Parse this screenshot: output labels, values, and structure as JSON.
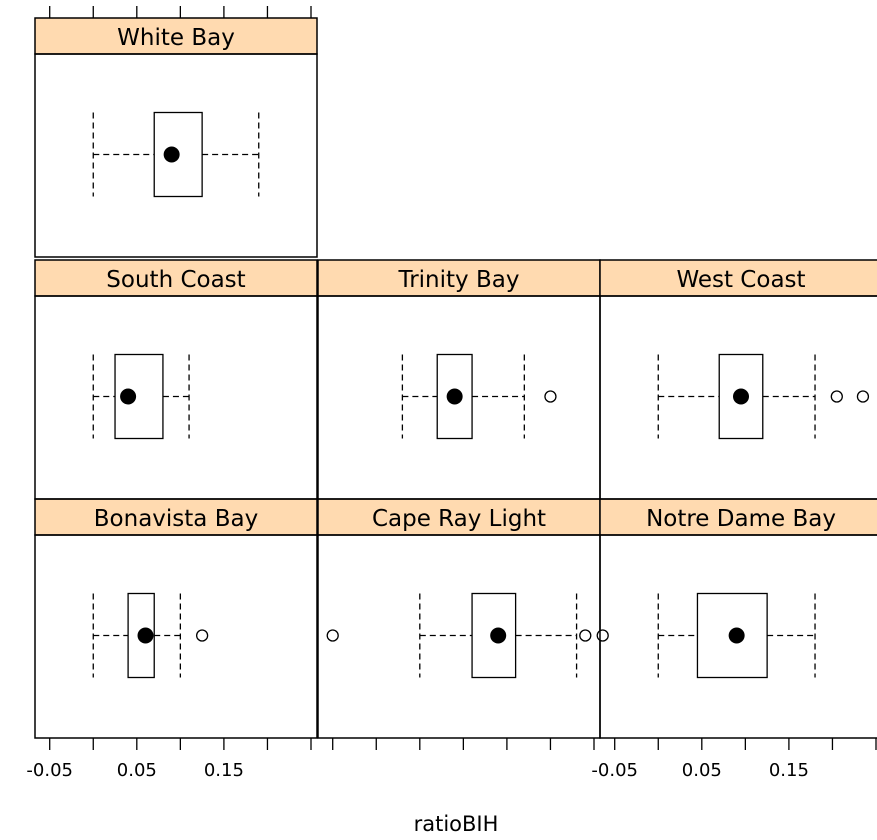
{
  "chart_data": {
    "type": "boxplot",
    "xlabel": "ratioBIH",
    "xlim": [
      -0.06,
      0.25
    ],
    "tick_values": [
      -0.05,
      0.0,
      0.05,
      0.1,
      0.15,
      0.2,
      0.25
    ],
    "tick_labels": [
      "-0.05",
      "",
      "0.05",
      "",
      "0.15",
      "",
      ""
    ],
    "strip_color": "#ffdab0",
    "panels": [
      {
        "name": "Bonavista Bay",
        "row": 0,
        "col": 0,
        "whisker_low": 0.0,
        "q1": 0.04,
        "median": 0.06,
        "q3": 0.07,
        "whisker_high": 0.1,
        "outliers": [
          0.125
        ]
      },
      {
        "name": "Cape Ray Light",
        "row": 0,
        "col": 1,
        "whisker_low": 0.05,
        "q1": 0.11,
        "median": 0.14,
        "q3": 0.16,
        "whisker_high": 0.23,
        "outliers": [
          -0.05,
          0.24,
          0.26
        ]
      },
      {
        "name": "Notre Dame Bay",
        "row": 0,
        "col": 2,
        "whisker_low": 0.0,
        "q1": 0.045,
        "median": 0.09,
        "q3": 0.125,
        "whisker_high": 0.18,
        "outliers": []
      },
      {
        "name": "South Coast",
        "row": 1,
        "col": 0,
        "whisker_low": 0.0,
        "q1": 0.025,
        "median": 0.04,
        "q3": 0.08,
        "whisker_high": 0.11,
        "outliers": []
      },
      {
        "name": "Trinity Bay",
        "row": 1,
        "col": 1,
        "whisker_low": 0.03,
        "q1": 0.07,
        "median": 0.09,
        "q3": 0.11,
        "whisker_high": 0.17,
        "outliers": [
          0.2
        ]
      },
      {
        "name": "West Coast",
        "row": 1,
        "col": 2,
        "whisker_low": 0.0,
        "q1": 0.07,
        "median": 0.095,
        "q3": 0.12,
        "whisker_high": 0.18,
        "outliers": [
          0.205,
          0.235
        ]
      },
      {
        "name": "White Bay",
        "row": 2,
        "col": 0,
        "whisker_low": 0.0,
        "q1": 0.07,
        "median": 0.09,
        "q3": 0.125,
        "whisker_high": 0.19,
        "outliers": []
      }
    ]
  }
}
